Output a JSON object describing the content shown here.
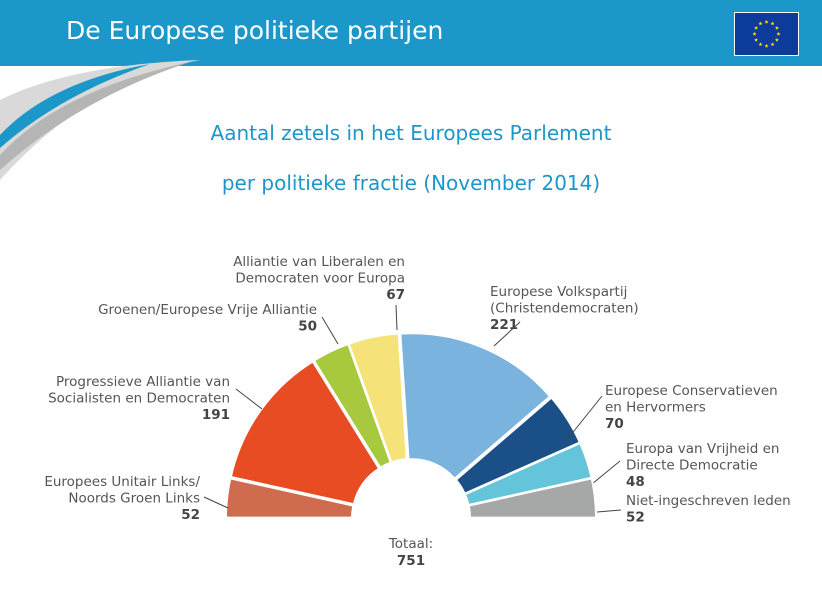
{
  "header": {
    "title": "De Europese politieke partijen"
  },
  "subtitle": {
    "line1": "Aantal zetels in het Europees Parlement",
    "line2": "per politieke fractie (November 2014)"
  },
  "colors": {
    "header_bg": "#1b97c9",
    "flag_blue": "#0d3b9c",
    "flag_star": "#ffdd00"
  },
  "chart_data": {
    "type": "pie",
    "variant": "semicircle-donut",
    "total_label": "Totaal:",
    "total_value": "751",
    "series": [
      {
        "name_lines": [
          "Europees Unitair Links/",
          "Noords Groen Links"
        ],
        "value": 52,
        "color": "#cf6c4f"
      },
      {
        "name_lines": [
          "Progressieve Alliantie van",
          "Socialisten en Democraten"
        ],
        "value": 191,
        "color": "#e84c22"
      },
      {
        "name_lines": [
          "Groenen/Europese Vrije Alliantie"
        ],
        "value": 50,
        "color": "#a8c83e"
      },
      {
        "name_lines": [
          "Alliantie van Liberalen en",
          "Democraten voor Europa"
        ],
        "value": 67,
        "color": "#f5e37a"
      },
      {
        "name_lines": [
          "Europese Volkspartij",
          "(Christendemocraten)"
        ],
        "value": 221,
        "color": "#7ab4de"
      },
      {
        "name_lines": [
          "Europese Conservatieven",
          "en Hervormers"
        ],
        "value": 70,
        "color": "#1b4f87"
      },
      {
        "name_lines": [
          "Europa van Vrijheid en",
          "Directe Democratie"
        ],
        "value": 48,
        "color": "#63c4da"
      },
      {
        "name_lines": [
          "Niet-ingeschreven leden"
        ],
        "value": 52,
        "color": "#a6a8a8"
      }
    ]
  }
}
